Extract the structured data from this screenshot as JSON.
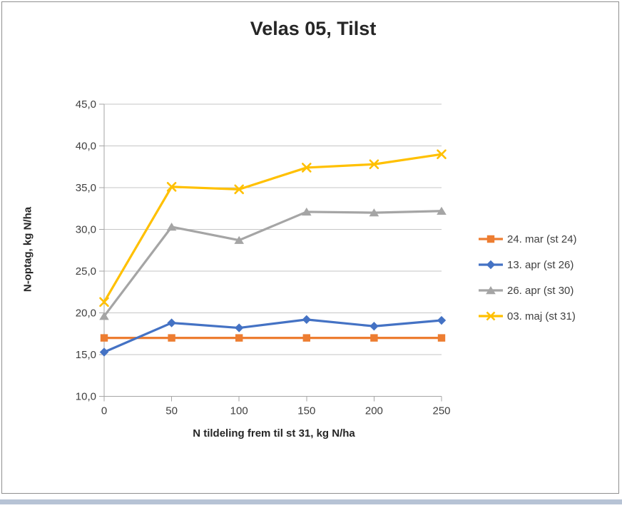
{
  "chart_data": {
    "type": "line",
    "title": "Velas 05, Tilst",
    "xlabel": "N tildeling frem til st 31, kg N/ha",
    "ylabel": "N-optag, kg N/ha",
    "x": [
      0,
      50,
      100,
      150,
      200,
      250
    ],
    "x_tick_labels": [
      "0",
      "50",
      "100",
      "150",
      "200",
      "250"
    ],
    "xlim": [
      0,
      250
    ],
    "ylim": [
      10,
      45
    ],
    "y_ticks": [
      10,
      15,
      20,
      25,
      30,
      35,
      40,
      45
    ],
    "y_tick_labels": [
      "10,0",
      "15,0",
      "20,0",
      "25,0",
      "30,0",
      "35,0",
      "40,0",
      "45,0"
    ],
    "grid": true,
    "legend_position": "right",
    "series": [
      {
        "name": "24. mar (st 24)",
        "color": "#ED7D31",
        "marker": "square",
        "values": [
          17.0,
          17.0,
          17.0,
          17.0,
          17.0,
          17.0
        ]
      },
      {
        "name": "13. apr (st 26)",
        "color": "#4472C4",
        "marker": "diamond",
        "values": [
          15.3,
          18.8,
          18.2,
          19.2,
          18.4,
          19.1
        ]
      },
      {
        "name": "26. apr (st 30)",
        "color": "#A5A5A5",
        "marker": "triangle",
        "values": [
          19.6,
          30.3,
          28.7,
          32.1,
          32.0,
          32.2
        ]
      },
      {
        "name": "03. maj (st 31)",
        "color": "#FFC000",
        "marker": "x",
        "values": [
          21.3,
          35.1,
          34.8,
          37.4,
          37.8,
          39.0
        ]
      }
    ]
  },
  "colors": {
    "gridline": "#c6c6c6",
    "axis": "#a6a6a6",
    "tick_text": "#3f3f3f",
    "title_text": "#262626",
    "frame_border": "#8f8f8f",
    "footer_bar": "#b7c3d5"
  }
}
